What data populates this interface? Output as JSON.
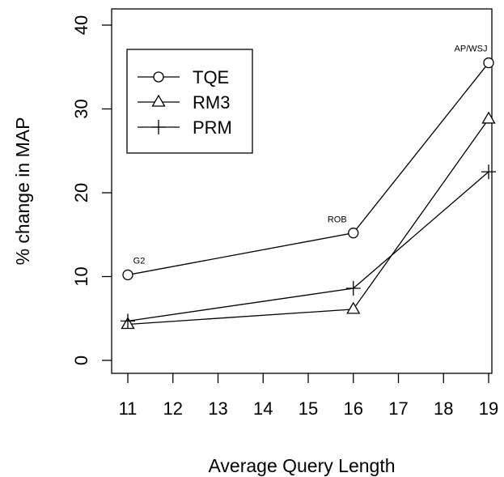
{
  "chart_data": {
    "type": "line",
    "title": "",
    "xlabel": "Average Query Length",
    "ylabel": "% change in MAP",
    "x": [
      11,
      16,
      19
    ],
    "x_ticks": [
      11,
      12,
      13,
      14,
      15,
      16,
      17,
      18,
      19
    ],
    "y_ticks": [
      0,
      10,
      20,
      30,
      40
    ],
    "xlim": [
      11,
      19
    ],
    "ylim": [
      0,
      40
    ],
    "grid": false,
    "legend_position": "top-left",
    "series": [
      {
        "name": "TQE",
        "marker": "circle",
        "values": [
          10.2,
          15.2,
          35.5
        ]
      },
      {
        "name": "RM3",
        "marker": "triangle",
        "values": [
          4.3,
          6.1,
          28.8
        ]
      },
      {
        "name": "PRM",
        "marker": "plus",
        "values": [
          4.7,
          8.6,
          22.5
        ]
      }
    ],
    "point_labels": [
      {
        "text": "G2",
        "x": 11,
        "y": 10.2
      },
      {
        "text": "ROB",
        "x": 16,
        "y": 15.2
      },
      {
        "text": "AP/WSJ",
        "x": 19,
        "y": 35.5
      }
    ]
  }
}
